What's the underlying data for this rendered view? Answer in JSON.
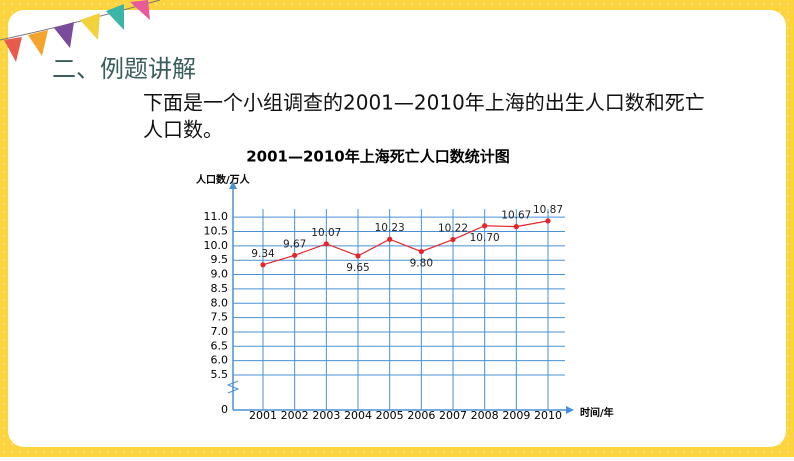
{
  "heading": "二、例题讲解",
  "text": [
    "下面是一个小组调查的2001—2010年上海的出生人口数和死亡",
    "人口数。"
  ],
  "chart_data": {
    "type": "line",
    "title": "2001—2010年上海死亡人口数统计图",
    "y_label": "人口数/万人",
    "x_label": "时间/年",
    "categories": [
      "2001",
      "2002",
      "2003",
      "2004",
      "2005",
      "2006",
      "2007",
      "2008",
      "2009",
      "2010"
    ],
    "series": [
      {
        "name": "死亡人口数",
        "color": "#e3262b",
        "values": [
          9.34,
          9.67,
          10.07,
          9.65,
          10.23,
          9.8,
          10.22,
          10.7,
          10.67,
          10.87
        ],
        "value_labels": [
          "9.34",
          "9.67",
          "10.07",
          "9.65",
          "10.23",
          "9.80",
          "10.22",
          "10.70",
          "10.67",
          "10.87"
        ]
      }
    ],
    "ylim": [
      0,
      11
    ],
    "yticks": [
      0,
      5.5,
      {
        "value": 6,
        "label": "6.0"
      },
      6.5,
      {
        "value": 7,
        "label": "7.0"
      },
      7.5,
      {
        "value": 8,
        "label": "8.0"
      },
      8.5,
      {
        "value": 9,
        "label": "9.0"
      },
      9.5,
      {
        "value": 10,
        "label": "10.0"
      },
      10.5,
      {
        "value": 11,
        "label": "11.0"
      }
    ],
    "grid": true,
    "grid_color": "#4a90d6"
  }
}
